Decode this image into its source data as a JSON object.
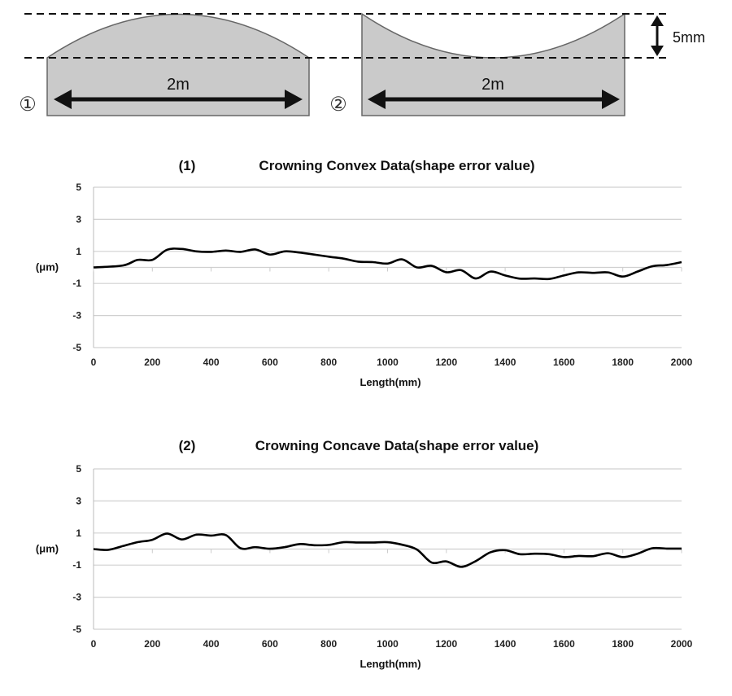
{
  "diagram": {
    "shape1_label": "①",
    "shape2_label": "②",
    "width_label_1": "2m",
    "width_label_2": "2m",
    "height_label": "5mm",
    "fill_color": "#cacaca",
    "outline_color": "#666666"
  },
  "chart_data": [
    {
      "type": "line",
      "number": "(1)",
      "title": "Crowning Convex Data(shape error value)",
      "xlabel": "Length(mm)",
      "ylabel": "(μm)",
      "xlim": [
        0,
        2000
      ],
      "ylim": [
        -5,
        5
      ],
      "xticks": [
        "0",
        "200",
        "400",
        "600",
        "800",
        "1000",
        "1200",
        "1400",
        "1600",
        "1800",
        "2000"
      ],
      "yticks": [
        "5",
        "3",
        "1",
        "-1",
        "-3",
        "-5"
      ],
      "grid": true,
      "line_color": "#000000",
      "x": [
        0,
        100,
        150,
        200,
        250,
        300,
        350,
        400,
        450,
        500,
        550,
        600,
        650,
        700,
        800,
        850,
        900,
        950,
        1000,
        1050,
        1100,
        1150,
        1200,
        1250,
        1300,
        1350,
        1400,
        1450,
        1500,
        1550,
        1600,
        1650,
        1700,
        1750,
        1800,
        1850,
        1900,
        1950,
        2000
      ],
      "y": [
        0,
        0.12,
        0.47,
        0.47,
        1.1,
        1.15,
        1.0,
        0.97,
        1.05,
        0.97,
        1.12,
        0.8,
        1.0,
        0.93,
        0.67,
        0.55,
        0.36,
        0.33,
        0.24,
        0.5,
        0,
        0.1,
        -0.3,
        -0.17,
        -0.69,
        -0.26,
        -0.5,
        -0.7,
        -0.69,
        -0.72,
        -0.5,
        -0.31,
        -0.34,
        -0.31,
        -0.57,
        -0.26,
        0.07,
        0.15,
        0.33
      ]
    },
    {
      "type": "line",
      "number": "(2)",
      "title": "Crowning Concave Data(shape error value)",
      "xlabel": "Length(mm)",
      "ylabel": "(μm)",
      "xlim": [
        0,
        2000
      ],
      "ylim": [
        -5,
        5
      ],
      "xticks": [
        "0",
        "200",
        "400",
        "600",
        "800",
        "1000",
        "1200",
        "1400",
        "1600",
        "1800",
        "2000"
      ],
      "yticks": [
        "5",
        "3",
        "1",
        "-1",
        "-3",
        "-5"
      ],
      "grid": true,
      "line_color": "#000000",
      "x": [
        0,
        50,
        100,
        150,
        200,
        250,
        300,
        350,
        400,
        450,
        500,
        550,
        600,
        650,
        700,
        750,
        800,
        850,
        900,
        950,
        1000,
        1050,
        1100,
        1150,
        1200,
        1250,
        1300,
        1350,
        1400,
        1450,
        1500,
        1550,
        1600,
        1650,
        1700,
        1750,
        1800,
        1850,
        1900,
        1950,
        2000
      ],
      "y": [
        0,
        -0.05,
        0.19,
        0.43,
        0.58,
        0.97,
        0.6,
        0.9,
        0.84,
        0.87,
        0.05,
        0.12,
        0.02,
        0.12,
        0.31,
        0.24,
        0.26,
        0.43,
        0.41,
        0.41,
        0.43,
        0.27,
        -0.03,
        -0.84,
        -0.77,
        -1.11,
        -0.75,
        -0.2,
        -0.07,
        -0.32,
        -0.29,
        -0.32,
        -0.5,
        -0.43,
        -0.44,
        -0.26,
        -0.5,
        -0.29,
        0.05,
        0.03,
        0.03
      ]
    }
  ]
}
